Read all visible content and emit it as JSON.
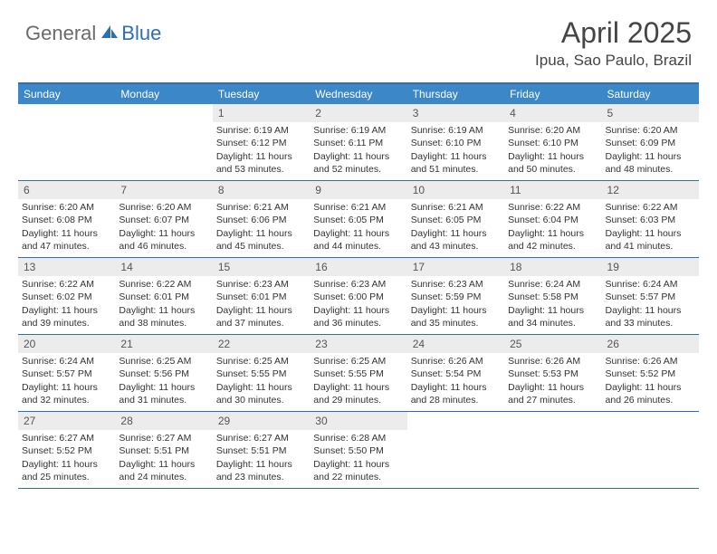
{
  "brand": {
    "part1": "General",
    "part2": "Blue"
  },
  "title": "April 2025",
  "location": "Ipua, Sao Paulo, Brazil",
  "colors": {
    "header_bar": "#3b87c8",
    "rule": "#2c6fb5",
    "daynum_bg": "#ececec",
    "text": "#333333",
    "title_text": "#454545"
  },
  "daysOfWeek": [
    "Sunday",
    "Monday",
    "Tuesday",
    "Wednesday",
    "Thursday",
    "Friday",
    "Saturday"
  ],
  "weeks": [
    [
      {
        "n": "",
        "sunrise": "",
        "sunset": "",
        "daylight": "",
        "empty": true
      },
      {
        "n": "",
        "sunrise": "",
        "sunset": "",
        "daylight": "",
        "empty": true
      },
      {
        "n": "1",
        "sunrise": "Sunrise: 6:19 AM",
        "sunset": "Sunset: 6:12 PM",
        "daylight": "Daylight: 11 hours and 53 minutes."
      },
      {
        "n": "2",
        "sunrise": "Sunrise: 6:19 AM",
        "sunset": "Sunset: 6:11 PM",
        "daylight": "Daylight: 11 hours and 52 minutes."
      },
      {
        "n": "3",
        "sunrise": "Sunrise: 6:19 AM",
        "sunset": "Sunset: 6:10 PM",
        "daylight": "Daylight: 11 hours and 51 minutes."
      },
      {
        "n": "4",
        "sunrise": "Sunrise: 6:20 AM",
        "sunset": "Sunset: 6:10 PM",
        "daylight": "Daylight: 11 hours and 50 minutes."
      },
      {
        "n": "5",
        "sunrise": "Sunrise: 6:20 AM",
        "sunset": "Sunset: 6:09 PM",
        "daylight": "Daylight: 11 hours and 48 minutes."
      }
    ],
    [
      {
        "n": "6",
        "sunrise": "Sunrise: 6:20 AM",
        "sunset": "Sunset: 6:08 PM",
        "daylight": "Daylight: 11 hours and 47 minutes."
      },
      {
        "n": "7",
        "sunrise": "Sunrise: 6:20 AM",
        "sunset": "Sunset: 6:07 PM",
        "daylight": "Daylight: 11 hours and 46 minutes."
      },
      {
        "n": "8",
        "sunrise": "Sunrise: 6:21 AM",
        "sunset": "Sunset: 6:06 PM",
        "daylight": "Daylight: 11 hours and 45 minutes."
      },
      {
        "n": "9",
        "sunrise": "Sunrise: 6:21 AM",
        "sunset": "Sunset: 6:05 PM",
        "daylight": "Daylight: 11 hours and 44 minutes."
      },
      {
        "n": "10",
        "sunrise": "Sunrise: 6:21 AM",
        "sunset": "Sunset: 6:05 PM",
        "daylight": "Daylight: 11 hours and 43 minutes."
      },
      {
        "n": "11",
        "sunrise": "Sunrise: 6:22 AM",
        "sunset": "Sunset: 6:04 PM",
        "daylight": "Daylight: 11 hours and 42 minutes."
      },
      {
        "n": "12",
        "sunrise": "Sunrise: 6:22 AM",
        "sunset": "Sunset: 6:03 PM",
        "daylight": "Daylight: 11 hours and 41 minutes."
      }
    ],
    [
      {
        "n": "13",
        "sunrise": "Sunrise: 6:22 AM",
        "sunset": "Sunset: 6:02 PM",
        "daylight": "Daylight: 11 hours and 39 minutes."
      },
      {
        "n": "14",
        "sunrise": "Sunrise: 6:22 AM",
        "sunset": "Sunset: 6:01 PM",
        "daylight": "Daylight: 11 hours and 38 minutes."
      },
      {
        "n": "15",
        "sunrise": "Sunrise: 6:23 AM",
        "sunset": "Sunset: 6:01 PM",
        "daylight": "Daylight: 11 hours and 37 minutes."
      },
      {
        "n": "16",
        "sunrise": "Sunrise: 6:23 AM",
        "sunset": "Sunset: 6:00 PM",
        "daylight": "Daylight: 11 hours and 36 minutes."
      },
      {
        "n": "17",
        "sunrise": "Sunrise: 6:23 AM",
        "sunset": "Sunset: 5:59 PM",
        "daylight": "Daylight: 11 hours and 35 minutes."
      },
      {
        "n": "18",
        "sunrise": "Sunrise: 6:24 AM",
        "sunset": "Sunset: 5:58 PM",
        "daylight": "Daylight: 11 hours and 34 minutes."
      },
      {
        "n": "19",
        "sunrise": "Sunrise: 6:24 AM",
        "sunset": "Sunset: 5:57 PM",
        "daylight": "Daylight: 11 hours and 33 minutes."
      }
    ],
    [
      {
        "n": "20",
        "sunrise": "Sunrise: 6:24 AM",
        "sunset": "Sunset: 5:57 PM",
        "daylight": "Daylight: 11 hours and 32 minutes."
      },
      {
        "n": "21",
        "sunrise": "Sunrise: 6:25 AM",
        "sunset": "Sunset: 5:56 PM",
        "daylight": "Daylight: 11 hours and 31 minutes."
      },
      {
        "n": "22",
        "sunrise": "Sunrise: 6:25 AM",
        "sunset": "Sunset: 5:55 PM",
        "daylight": "Daylight: 11 hours and 30 minutes."
      },
      {
        "n": "23",
        "sunrise": "Sunrise: 6:25 AM",
        "sunset": "Sunset: 5:55 PM",
        "daylight": "Daylight: 11 hours and 29 minutes."
      },
      {
        "n": "24",
        "sunrise": "Sunrise: 6:26 AM",
        "sunset": "Sunset: 5:54 PM",
        "daylight": "Daylight: 11 hours and 28 minutes."
      },
      {
        "n": "25",
        "sunrise": "Sunrise: 6:26 AM",
        "sunset": "Sunset: 5:53 PM",
        "daylight": "Daylight: 11 hours and 27 minutes."
      },
      {
        "n": "26",
        "sunrise": "Sunrise: 6:26 AM",
        "sunset": "Sunset: 5:52 PM",
        "daylight": "Daylight: 11 hours and 26 minutes."
      }
    ],
    [
      {
        "n": "27",
        "sunrise": "Sunrise: 6:27 AM",
        "sunset": "Sunset: 5:52 PM",
        "daylight": "Daylight: 11 hours and 25 minutes."
      },
      {
        "n": "28",
        "sunrise": "Sunrise: 6:27 AM",
        "sunset": "Sunset: 5:51 PM",
        "daylight": "Daylight: 11 hours and 24 minutes."
      },
      {
        "n": "29",
        "sunrise": "Sunrise: 6:27 AM",
        "sunset": "Sunset: 5:51 PM",
        "daylight": "Daylight: 11 hours and 23 minutes."
      },
      {
        "n": "30",
        "sunrise": "Sunrise: 6:28 AM",
        "sunset": "Sunset: 5:50 PM",
        "daylight": "Daylight: 11 hours and 22 minutes."
      },
      {
        "n": "",
        "sunrise": "",
        "sunset": "",
        "daylight": "",
        "empty": true
      },
      {
        "n": "",
        "sunrise": "",
        "sunset": "",
        "daylight": "",
        "empty": true
      },
      {
        "n": "",
        "sunrise": "",
        "sunset": "",
        "daylight": "",
        "empty": true
      }
    ]
  ]
}
